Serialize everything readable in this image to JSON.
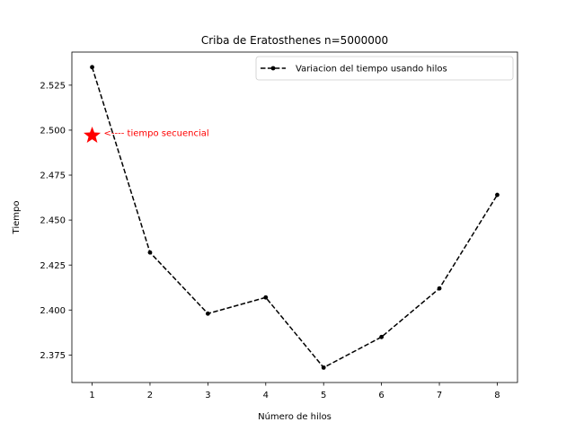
{
  "chart_data": {
    "type": "line",
    "title": "Criba de Eratosthenes n=5000000",
    "xlabel": "Número de hilos",
    "ylabel": "Tiempo",
    "x": [
      1,
      2,
      3,
      4,
      5,
      6,
      7,
      8
    ],
    "series": [
      {
        "name": "Variacion del tiempo usando hilos",
        "values": [
          2.535,
          2.432,
          2.398,
          2.407,
          2.368,
          2.385,
          2.412,
          2.464
        ],
        "color": "#000000",
        "line_style": "dashed",
        "marker": "dot"
      }
    ],
    "xlim": [
      0.65,
      8.35
    ],
    "ylim": [
      2.3597,
      2.5434
    ],
    "xticks": [
      1,
      2,
      3,
      4,
      5,
      6,
      7,
      8
    ],
    "yticks": [
      2.375,
      2.4,
      2.425,
      2.45,
      2.475,
      2.5,
      2.525
    ],
    "ytick_labels": [
      "2.375",
      "2.400",
      "2.425",
      "2.450",
      "2.475",
      "2.500",
      "2.525"
    ],
    "legend_position": "top-right",
    "grid": false,
    "annotations": [
      {
        "text": "<---- tiempo secuencial",
        "x": 1,
        "y": 2.497,
        "marker": "star",
        "color": "#ff0000"
      }
    ]
  }
}
